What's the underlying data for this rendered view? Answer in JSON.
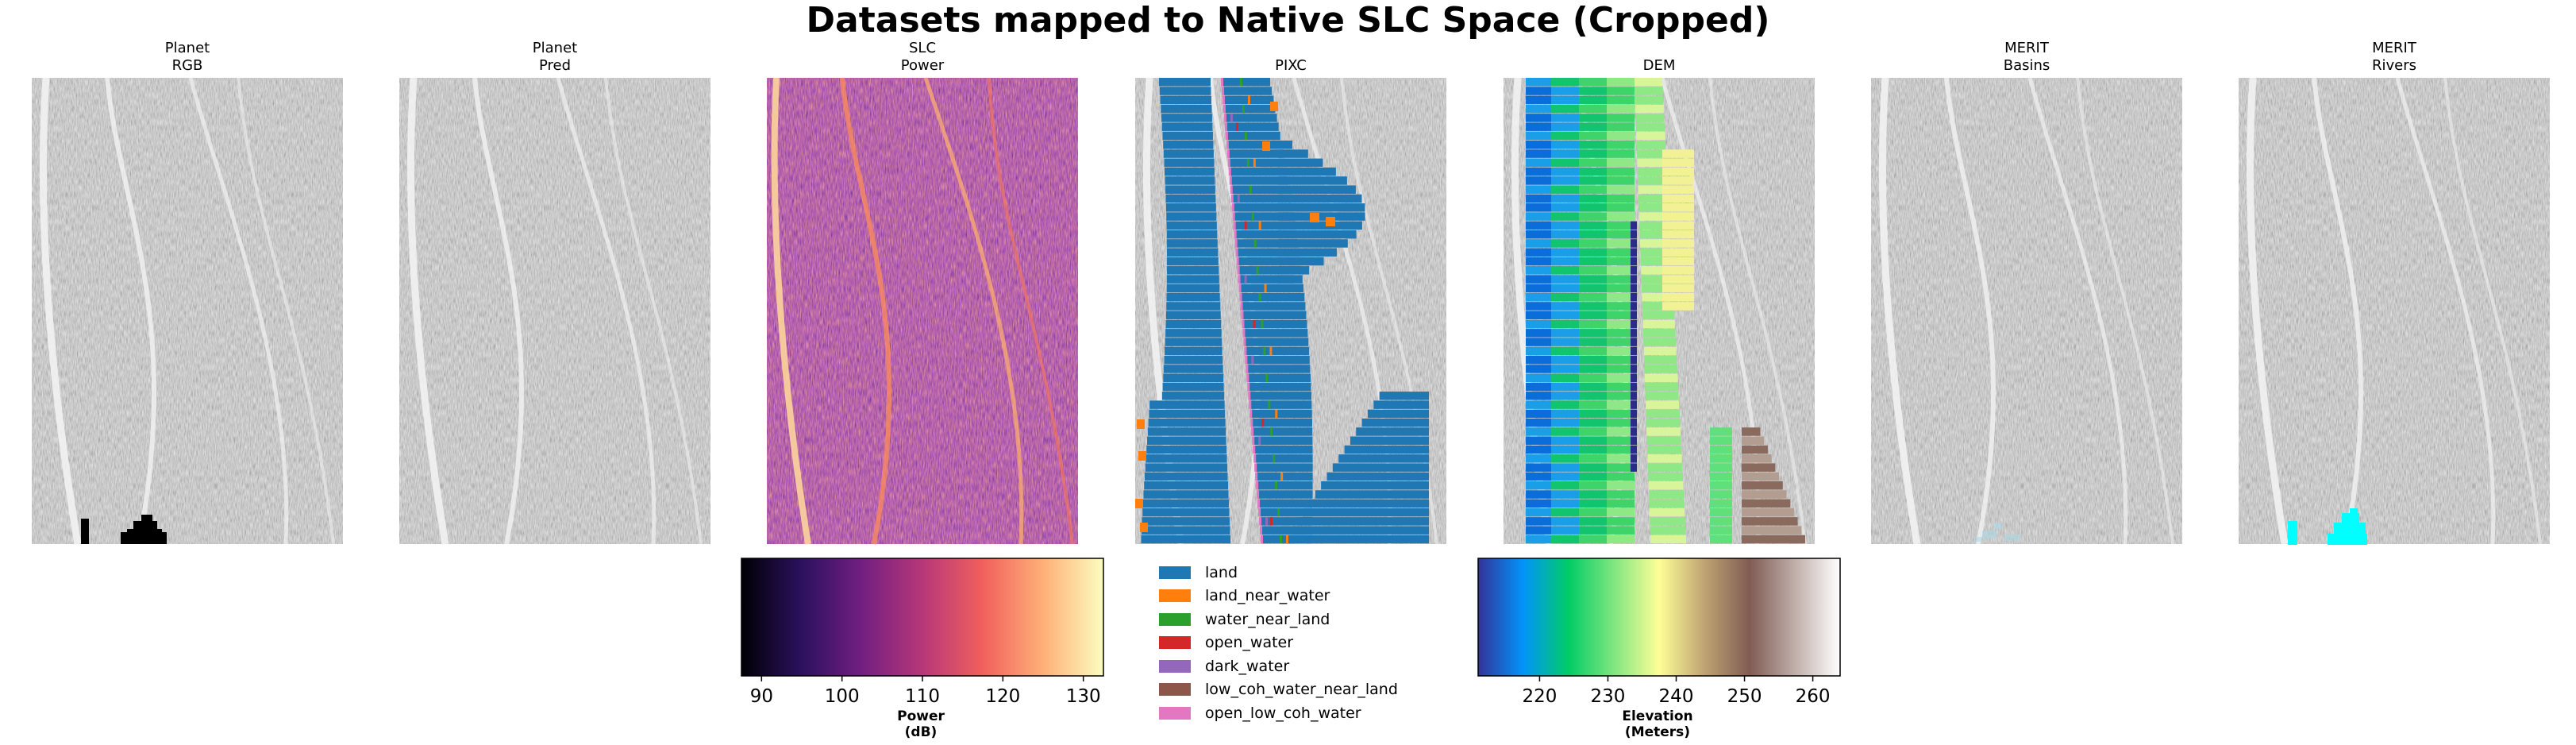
{
  "figure_title": "Datasets mapped to Native SLC Space (Cropped)",
  "colors": {
    "sar_background": "#bdbdbd",
    "land": "#1f77b4",
    "land_near_water": "#ff7f0e",
    "water_near_land": "#2ca02c",
    "open_water": "#d62728",
    "dark_water": "#9467bd",
    "low_coh_water_near_land": "#8c564b",
    "open_low_coh_water": "#e377c2",
    "planet_rgb_mask": "#000000",
    "merit_rivers_mask": "#00ffff",
    "merit_basins_mask": "#add8e6"
  },
  "panels": [
    {
      "line1": "Planet",
      "line2": "RGB",
      "content": "sar_with_black_mask"
    },
    {
      "line1": "Planet",
      "line2": "Pred",
      "content": "sar"
    },
    {
      "line1": "SLC",
      "line2": "Power",
      "content": "slc_power_magma"
    },
    {
      "line1": "",
      "line2": "PIXC",
      "content": "pixc_classes"
    },
    {
      "line1": "",
      "line2": "DEM",
      "content": "dem_terrain"
    },
    {
      "line1": "MERIT",
      "line2": "Basins",
      "content": "sar_with_light_blue_mask"
    },
    {
      "line1": "MERIT",
      "line2": "Rivers",
      "content": "sar_with_cyan_mask"
    }
  ],
  "legend": {
    "items": [
      {
        "label": "land",
        "color_key": "land"
      },
      {
        "label": "land_near_water",
        "color_key": "land_near_water"
      },
      {
        "label": "water_near_land",
        "color_key": "water_near_land"
      },
      {
        "label": "open_water",
        "color_key": "open_water"
      },
      {
        "label": "dark_water",
        "color_key": "dark_water"
      },
      {
        "label": "low_coh_water_near_land",
        "color_key": "low_coh_water_near_land"
      },
      {
        "label": "open_low_coh_water",
        "color_key": "open_low_coh_water"
      }
    ]
  },
  "colorbars": {
    "power": {
      "label_line1": "Power",
      "label_line2": "(dB)",
      "range": [
        87.5,
        132.5
      ],
      "ticks": [
        90,
        100,
        110,
        120,
        130
      ],
      "colormap": "magma",
      "stops": [
        "#000004",
        "#2c115f",
        "#721f81",
        "#b73779",
        "#f1605d",
        "#feb078",
        "#fcfdbf"
      ]
    },
    "elevation": {
      "label_line1": "Elevation",
      "label_line2": "(Meters)",
      "range": [
        211,
        264
      ],
      "ticks": [
        220,
        230,
        240,
        250,
        260
      ],
      "colormap": "terrain",
      "stops": [
        "#333399",
        "#0294fa",
        "#01cc66",
        "#80e680",
        "#fefe98",
        "#bfa372",
        "#805c54",
        "#c0aea9",
        "#ffffff"
      ]
    }
  },
  "chart_data": [
    {
      "type": "heatmap",
      "title": "Datasets mapped to Native SLC Space (Cropped)",
      "panels": [
        "Planet RGB",
        "Planet Pred",
        "SLC Power",
        "PIXC",
        "DEM",
        "MERIT Basins",
        "MERIT Rivers"
      ],
      "colorbar_power": {
        "label": "Power (dB)",
        "ticks": [
          90,
          100,
          110,
          120,
          130
        ],
        "range": [
          87.5,
          132.5
        ],
        "colormap": "magma"
      },
      "colorbar_elevation": {
        "label": "Elevation (Meters)",
        "ticks": [
          220,
          230,
          240,
          250,
          260
        ],
        "range": [
          211,
          264
        ],
        "colormap": "terrain"
      },
      "pixc_classes": [
        "land",
        "land_near_water",
        "water_near_land",
        "open_water",
        "dark_water",
        "low_coh_water_near_land",
        "open_low_coh_water"
      ],
      "legend_placement": "below PIXC panel",
      "grid": false
    }
  ]
}
